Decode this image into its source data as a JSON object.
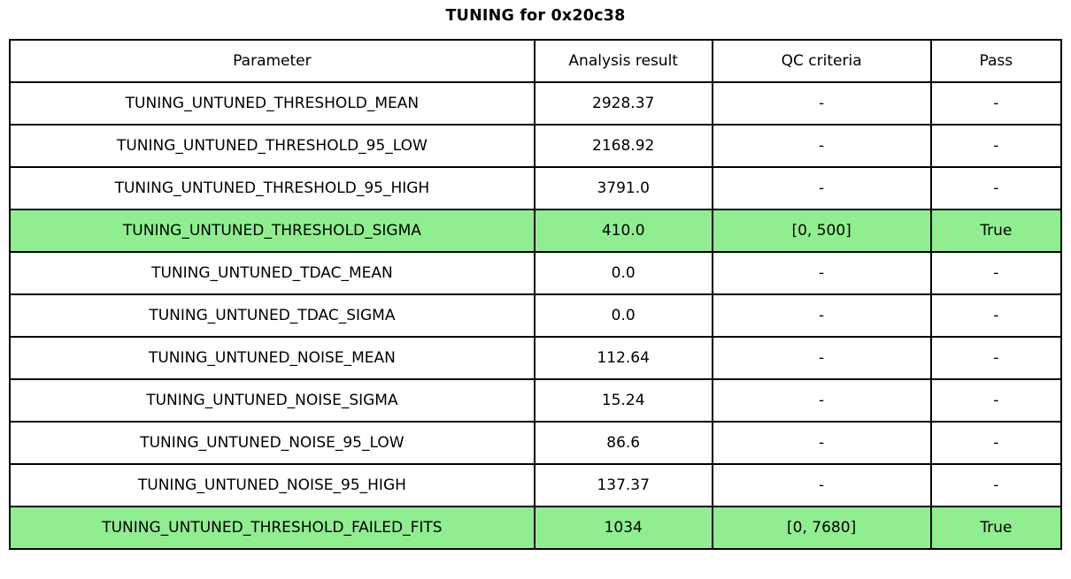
{
  "title": "TUNING for 0x20c38",
  "colors": {
    "highlight_green": "#90EE90",
    "border": "#000000",
    "background": "#FFFFFF",
    "text": "#000000"
  },
  "chart_data": {
    "type": "table",
    "title": "TUNING for 0x20c38",
    "headers": [
      "Parameter",
      "Analysis result",
      "QC criteria",
      "Pass"
    ],
    "rows": [
      {
        "parameter": "TUNING_UNTUNED_THRESHOLD_MEAN",
        "result": "2928.37",
        "qc": "-",
        "pass": "-",
        "highlight": false
      },
      {
        "parameter": "TUNING_UNTUNED_THRESHOLD_95_LOW",
        "result": "2168.92",
        "qc": "-",
        "pass": "-",
        "highlight": false
      },
      {
        "parameter": "TUNING_UNTUNED_THRESHOLD_95_HIGH",
        "result": "3791.0",
        "qc": "-",
        "pass": "-",
        "highlight": false
      },
      {
        "parameter": "TUNING_UNTUNED_THRESHOLD_SIGMA",
        "result": "410.0",
        "qc": "[0, 500]",
        "pass": "True",
        "highlight": true
      },
      {
        "parameter": "TUNING_UNTUNED_TDAC_MEAN",
        "result": "0.0",
        "qc": "-",
        "pass": "-",
        "highlight": false
      },
      {
        "parameter": "TUNING_UNTUNED_TDAC_SIGMA",
        "result": "0.0",
        "qc": "-",
        "pass": "-",
        "highlight": false
      },
      {
        "parameter": "TUNING_UNTUNED_NOISE_MEAN",
        "result": "112.64",
        "qc": "-",
        "pass": "-",
        "highlight": false
      },
      {
        "parameter": "TUNING_UNTUNED_NOISE_SIGMA",
        "result": "15.24",
        "qc": "-",
        "pass": "-",
        "highlight": false
      },
      {
        "parameter": "TUNING_UNTUNED_NOISE_95_LOW",
        "result": "86.6",
        "qc": "-",
        "pass": "-",
        "highlight": false
      },
      {
        "parameter": "TUNING_UNTUNED_NOISE_95_HIGH",
        "result": "137.37",
        "qc": "-",
        "pass": "-",
        "highlight": false
      },
      {
        "parameter": "TUNING_UNTUNED_THRESHOLD_FAILED_FITS",
        "result": "1034",
        "qc": "[0, 7680]",
        "pass": "True",
        "highlight": true
      }
    ]
  }
}
